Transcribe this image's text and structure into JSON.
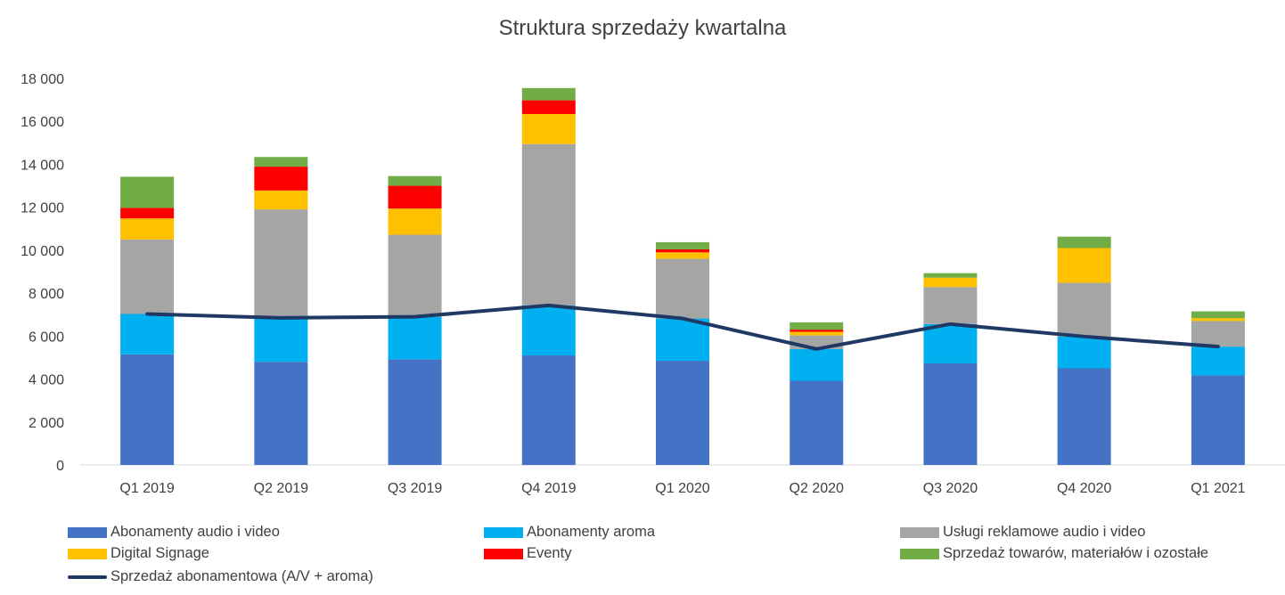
{
  "chart_data": {
    "type": "bar",
    "stacked": true,
    "title": "Struktura sprzedaży kwartalna",
    "xlabel": "",
    "ylabel": "",
    "ylim": [
      0,
      18000
    ],
    "y_ticks": [
      "0",
      "2 000",
      "4 000",
      "6 000",
      "8 000",
      "10 000",
      "12 000",
      "14 000",
      "16 000",
      "18 000"
    ],
    "grid": false,
    "legend_position": "bottom",
    "categories": [
      "Q1 2019",
      "Q2 2019",
      "Q3 2019",
      "Q4 2019",
      "Q1 2020",
      "Q2 2020",
      "Q3 2020",
      "Q4 2020",
      "Q1 2021"
    ],
    "series": [
      {
        "name": "Abonamenty audio i video",
        "color": "#4472C4",
        "values": [
          5150,
          4800,
          4920,
          5100,
          4850,
          3920,
          4730,
          4500,
          4170
        ]
      },
      {
        "name": "Abonamenty aroma",
        "color": "#00B0F0",
        "values": [
          1880,
          2050,
          1980,
          2330,
          1970,
          1480,
          1830,
          1480,
          1340
        ]
      },
      {
        "name": "Usługi reklamowe audio i video",
        "color": "#A5A5A5",
        "values": [
          3470,
          5050,
          3820,
          7510,
          2780,
          630,
          1720,
          2500,
          1190
        ]
      },
      {
        "name": "Digital Signage",
        "color": "#FFC000",
        "values": [
          980,
          880,
          1220,
          1400,
          300,
          170,
          440,
          1620,
          140
        ]
      },
      {
        "name": "Eventy",
        "color": "#FF0000",
        "values": [
          490,
          1110,
          1060,
          640,
          140,
          100,
          0,
          0,
          0
        ]
      },
      {
        "name": "Sprzedaż towarów, materiałów i ozostałe",
        "color": "#70AD47",
        "values": [
          1450,
          450,
          450,
          570,
          330,
          340,
          210,
          530,
          310
        ]
      }
    ],
    "line_series": [
      {
        "name": "Sprzedaż abonamentowa (A/V + aroma)",
        "color": "#203864",
        "values": [
          7030,
          6850,
          6900,
          7430,
          6820,
          5400,
          6560,
          5980,
          5510
        ]
      }
    ]
  }
}
